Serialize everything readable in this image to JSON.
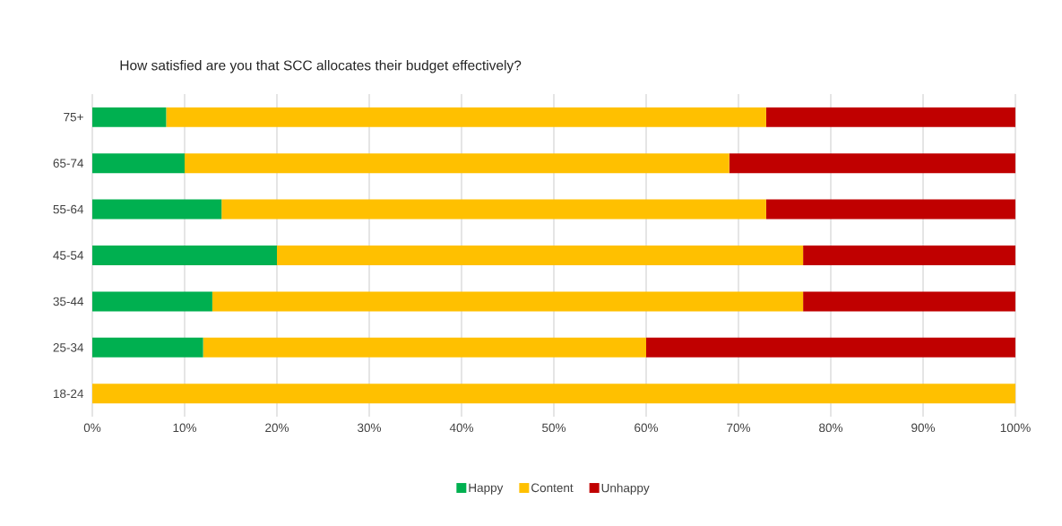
{
  "chart_data": {
    "type": "bar",
    "orientation": "horizontal",
    "stacked": true,
    "title": "How satisfied are you that SCC allocates their budget effectively?",
    "categories": [
      "75+",
      "65-74",
      "55-64",
      "45-54",
      "35-44",
      "25-34",
      "18-24"
    ],
    "series": [
      {
        "name": "Happy",
        "color": "#00b050",
        "values": [
          8,
          10,
          14,
          20,
          13,
          12,
          0
        ]
      },
      {
        "name": "Content",
        "color": "#ffc000",
        "values": [
          65,
          59,
          59,
          57,
          64,
          48,
          100
        ]
      },
      {
        "name": "Unhappy",
        "color": "#c00000",
        "values": [
          27,
          31,
          27,
          23,
          23,
          40,
          0
        ]
      }
    ],
    "xlim": [
      0,
      100
    ],
    "xticks": [
      {
        "value": 0,
        "label": "0%"
      },
      {
        "value": 10,
        "label": "10%"
      },
      {
        "value": 20,
        "label": "20%"
      },
      {
        "value": 30,
        "label": "30%"
      },
      {
        "value": 40,
        "label": "40%"
      },
      {
        "value": 50,
        "label": "50%"
      },
      {
        "value": 60,
        "label": "60%"
      },
      {
        "value": 70,
        "label": "70%"
      },
      {
        "value": 80,
        "label": "80%"
      },
      {
        "value": 90,
        "label": "90%"
      },
      {
        "value": 100,
        "label": "100%"
      }
    ],
    "grid": "x",
    "legend": "bottom"
  }
}
